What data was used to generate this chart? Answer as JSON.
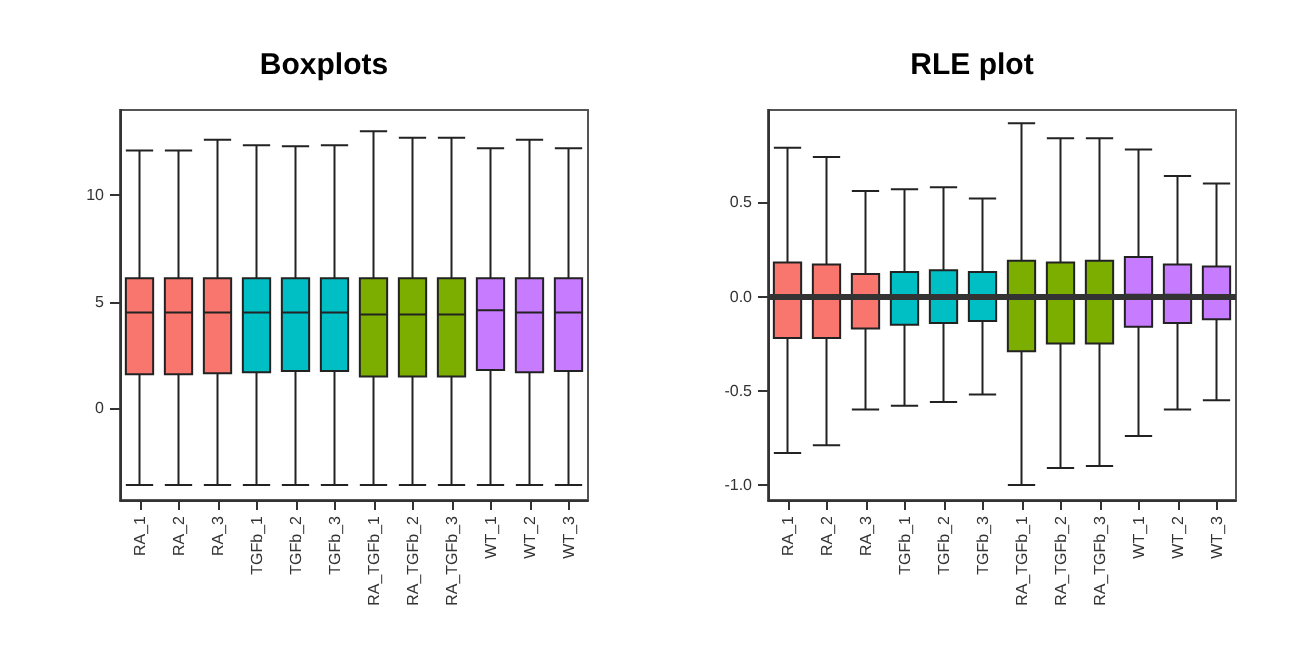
{
  "chart_data": [
    {
      "type": "box",
      "title": "Boxplots",
      "categories": [
        "RA_1",
        "RA_2",
        "RA_3",
        "TGFb_1",
        "TGFb_2",
        "TGFb_3",
        "RA_TGFb_1",
        "RA_TGFb_2",
        "RA_TGFb_3",
        "WT_1",
        "WT_2",
        "WT_3"
      ],
      "colors": [
        "#f8766d",
        "#f8766d",
        "#f8766d",
        "#00bfc4",
        "#00bfc4",
        "#00bfc4",
        "#7cae00",
        "#7cae00",
        "#7cae00",
        "#c77cff",
        "#c77cff",
        "#c77cff"
      ],
      "boxes": [
        {
          "low": -3.6,
          "q1": 1.6,
          "median": 4.5,
          "q3": 6.1,
          "high": 12.1
        },
        {
          "low": -3.6,
          "q1": 1.6,
          "median": 4.5,
          "q3": 6.1,
          "high": 12.1
        },
        {
          "low": -3.6,
          "q1": 1.65,
          "median": 4.5,
          "q3": 6.1,
          "high": 12.6
        },
        {
          "low": -3.6,
          "q1": 1.7,
          "median": 4.5,
          "q3": 6.1,
          "high": 12.35
        },
        {
          "low": -3.6,
          "q1": 1.75,
          "median": 4.5,
          "q3": 6.1,
          "high": 12.3
        },
        {
          "low": -3.6,
          "q1": 1.75,
          "median": 4.5,
          "q3": 6.1,
          "high": 12.35
        },
        {
          "low": -3.6,
          "q1": 1.5,
          "median": 4.4,
          "q3": 6.1,
          "high": 13.0
        },
        {
          "low": -3.6,
          "q1": 1.5,
          "median": 4.4,
          "q3": 6.1,
          "high": 12.7
        },
        {
          "low": -3.6,
          "q1": 1.5,
          "median": 4.4,
          "q3": 6.1,
          "high": 12.7
        },
        {
          "low": -3.6,
          "q1": 1.8,
          "median": 4.6,
          "q3": 6.1,
          "high": 12.2
        },
        {
          "low": -3.6,
          "q1": 1.7,
          "median": 4.5,
          "q3": 6.1,
          "high": 12.6
        },
        {
          "low": -3.6,
          "q1": 1.75,
          "median": 4.5,
          "q3": 6.1,
          "high": 12.2
        }
      ],
      "ylim": [
        -4.3,
        14.0
      ],
      "yticks": [
        0,
        5,
        10
      ],
      "grid": false
    },
    {
      "type": "box",
      "title": "RLE plot",
      "categories": [
        "RA_1",
        "RA_2",
        "RA_3",
        "TGFb_1",
        "TGFb_2",
        "TGFb_3",
        "RA_TGFb_1",
        "RA_TGFb_2",
        "RA_TGFb_3",
        "WT_1",
        "WT_2",
        "WT_3"
      ],
      "colors": [
        "#f8766d",
        "#f8766d",
        "#f8766d",
        "#00bfc4",
        "#00bfc4",
        "#00bfc4",
        "#7cae00",
        "#7cae00",
        "#7cae00",
        "#c77cff",
        "#c77cff",
        "#c77cff"
      ],
      "boxes": [
        {
          "low": -0.83,
          "q1": -0.22,
          "median": -0.01,
          "q3": 0.18,
          "high": 0.79
        },
        {
          "low": -0.79,
          "q1": -0.22,
          "median": -0.01,
          "q3": 0.17,
          "high": 0.74
        },
        {
          "low": -0.6,
          "q1": -0.17,
          "median": 0,
          "q3": 0.12,
          "high": 0.56
        },
        {
          "low": -0.58,
          "q1": -0.15,
          "median": 0,
          "q3": 0.13,
          "high": 0.57
        },
        {
          "low": -0.56,
          "q1": -0.14,
          "median": 0,
          "q3": 0.14,
          "high": 0.58
        },
        {
          "low": -0.52,
          "q1": -0.13,
          "median": 0,
          "q3": 0.13,
          "high": 0.52
        },
        {
          "low": -1.0,
          "q1": -0.29,
          "median": 0,
          "q3": 0.19,
          "high": 0.92
        },
        {
          "low": -0.91,
          "q1": -0.25,
          "median": 0,
          "q3": 0.18,
          "high": 0.84
        },
        {
          "low": -0.9,
          "q1": -0.25,
          "median": 0,
          "q3": 0.19,
          "high": 0.84
        },
        {
          "low": -0.74,
          "q1": -0.16,
          "median": 0.01,
          "q3": 0.21,
          "high": 0.78
        },
        {
          "low": -0.6,
          "q1": -0.14,
          "median": 0.01,
          "q3": 0.17,
          "high": 0.64
        },
        {
          "low": -0.55,
          "q1": -0.12,
          "median": 0,
          "q3": 0.16,
          "high": 0.6
        }
      ],
      "ylim": [
        -1.08,
        0.99
      ],
      "yticks": [
        {
          "value": -1,
          "label": "-1.0"
        },
        {
          "value": -0.5,
          "label": "-0.5"
        },
        {
          "value": 0,
          "label": "0.0"
        },
        {
          "value": 0.5,
          "label": "0.5"
        }
      ],
      "ref_lines": [
        {
          "axis": "y",
          "value": 0,
          "color": "#333333"
        }
      ],
      "grid": false
    }
  ]
}
